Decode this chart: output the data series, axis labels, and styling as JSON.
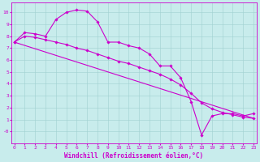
{
  "xlabel": "Windchill (Refroidissement éolien,°C)",
  "background_color": "#c8ecec",
  "line_color": "#cc00cc",
  "grid_color": "#a0d0d0",
  "line1_x": [
    0,
    1,
    2,
    3,
    4,
    5,
    6,
    7,
    8,
    9,
    10,
    11,
    12,
    13,
    14,
    15,
    16,
    17,
    18,
    19,
    20,
    21,
    22,
    23
  ],
  "line1_y": [
    7.5,
    8.3,
    8.2,
    8.0,
    9.4,
    10.0,
    10.2,
    10.1,
    9.2,
    7.5,
    7.5,
    7.2,
    7.0,
    6.5,
    5.5,
    5.5,
    4.5,
    2.5,
    -0.3,
    1.3,
    1.5,
    1.5,
    1.3,
    1.5
  ],
  "line2_x": [
    0,
    1,
    2,
    3,
    4,
    5,
    6,
    7,
    8,
    9,
    10,
    11,
    12,
    13,
    14,
    15,
    16,
    17,
    18,
    19,
    20,
    21,
    22,
    23
  ],
  "line2_y": [
    7.5,
    8.0,
    7.9,
    7.7,
    7.5,
    7.3,
    7.0,
    6.8,
    6.5,
    6.2,
    5.9,
    5.7,
    5.4,
    5.1,
    4.8,
    4.4,
    3.9,
    3.2,
    2.4,
    1.9,
    1.6,
    1.4,
    1.2,
    1.1
  ],
  "line3_x": [
    0,
    23
  ],
  "line3_y": [
    7.5,
    1.1
  ],
  "ylim": [
    -1.0,
    10.8
  ],
  "xlim": [
    -0.3,
    23.3
  ],
  "yticks": [
    0,
    1,
    2,
    3,
    4,
    5,
    6,
    7,
    8,
    9,
    10
  ],
  "ytick_labels": [
    "-0",
    "1",
    "2",
    "3",
    "4",
    "5",
    "6",
    "7",
    "8",
    "9",
    "10"
  ],
  "xticks": [
    0,
    1,
    2,
    3,
    4,
    5,
    6,
    7,
    8,
    9,
    10,
    11,
    12,
    13,
    14,
    15,
    16,
    17,
    18,
    19,
    20,
    21,
    22,
    23
  ],
  "tick_label_size": 4.5,
  "xlabel_size": 5.5,
  "marker": "D",
  "marker_size": 1.8,
  "linewidth": 0.8
}
